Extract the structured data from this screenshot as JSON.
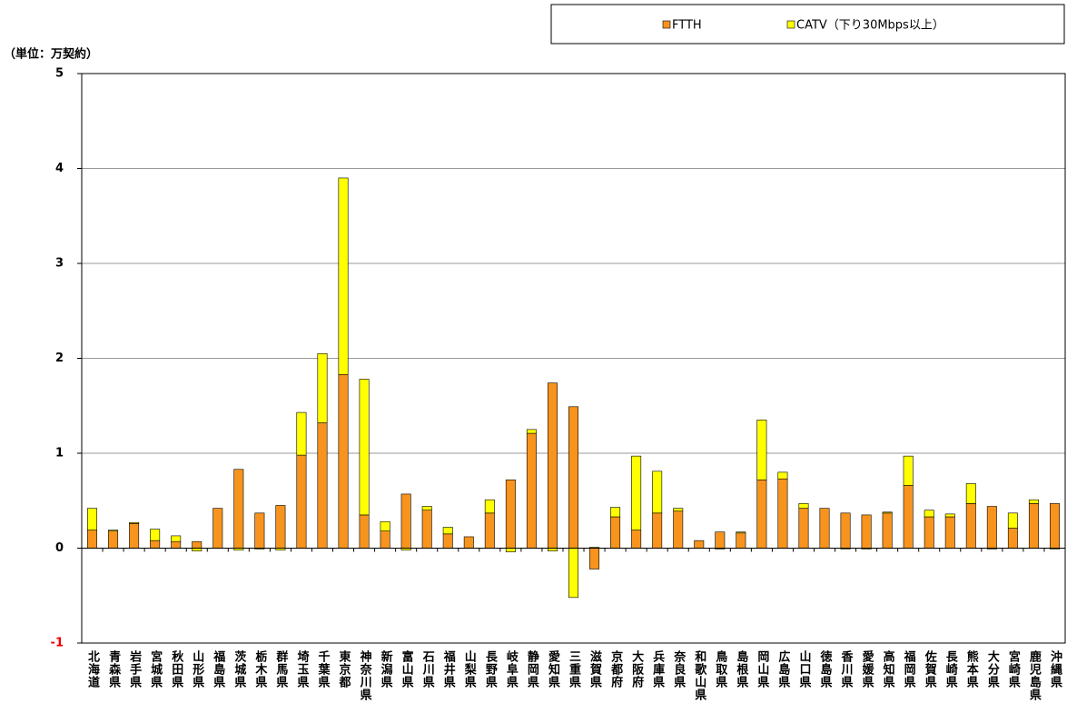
{
  "chart_data": {
    "type": "stacked_bar",
    "unit_label": "（単位：万契約）",
    "categories": [
      "北海道",
      "青森県",
      "岩手県",
      "宮城県",
      "秋田県",
      "山形県",
      "福島県",
      "茨城県",
      "栃木県",
      "群馬県",
      "埼玉県",
      "千葉県",
      "東京都",
      "神奈川県",
      "新潟県",
      "富山県",
      "石川県",
      "福井県",
      "山梨県",
      "長野県",
      "岐阜県",
      "静岡県",
      "愛知県",
      "三重県",
      "滋賀県",
      "京都府",
      "大阪府",
      "兵庫県",
      "奈良県",
      "和歌山県",
      "鳥取県",
      "島根県",
      "岡山県",
      "広島県",
      "山口県",
      "徳島県",
      "香川県",
      "愛媛県",
      "高知県",
      "福岡県",
      "佐賀県",
      "長崎県",
      "熊本県",
      "大分県",
      "宮崎県",
      "鹿児島県",
      "沖縄県"
    ],
    "series": [
      {
        "name": "FTTH",
        "color": "#f7941d",
        "values": [
          0.19,
          0.18,
          0.26,
          0.08,
          0.07,
          0.07,
          0.42,
          0.83,
          0.37,
          0.45,
          0.98,
          1.32,
          1.83,
          0.35,
          0.18,
          0.57,
          0.4,
          0.15,
          0.12,
          0.37,
          0.72,
          1.21,
          1.74,
          1.49,
          -0.22,
          0.33,
          0.19,
          0.37,
          0.39,
          0.08,
          0.17,
          0.16,
          0.72,
          0.73,
          0.42,
          0.42,
          0.37,
          0.35,
          0.37,
          0.66,
          0.33,
          0.33,
          0.47,
          0.44,
          0.21,
          0.47,
          0.47
        ]
      },
      {
        "name": "CATV（下り30Mbps以上）",
        "color": "#ffff00",
        "values": [
          0.23,
          0.01,
          0.01,
          0.12,
          0.06,
          -0.03,
          0,
          -0.02,
          -0.01,
          -0.02,
          0.45,
          0.73,
          2.07,
          1.43,
          0.1,
          -0.02,
          0.04,
          0.07,
          0,
          0.14,
          -0.04,
          0.04,
          -0.03,
          -0.52,
          0.01,
          0.1,
          0.78,
          0.44,
          0.03,
          0,
          -0.01,
          0.01,
          0.63,
          0.07,
          0.05,
          0,
          -0.01,
          -0.01,
          0.01,
          0.31,
          0.07,
          0.03,
          0.21,
          -0.01,
          0.16,
          0.04,
          -0.01
        ]
      }
    ],
    "ylim": [
      -1,
      5
    ],
    "yticks": [
      -1,
      0,
      1,
      2,
      3,
      4,
      5
    ],
    "grid": true
  }
}
